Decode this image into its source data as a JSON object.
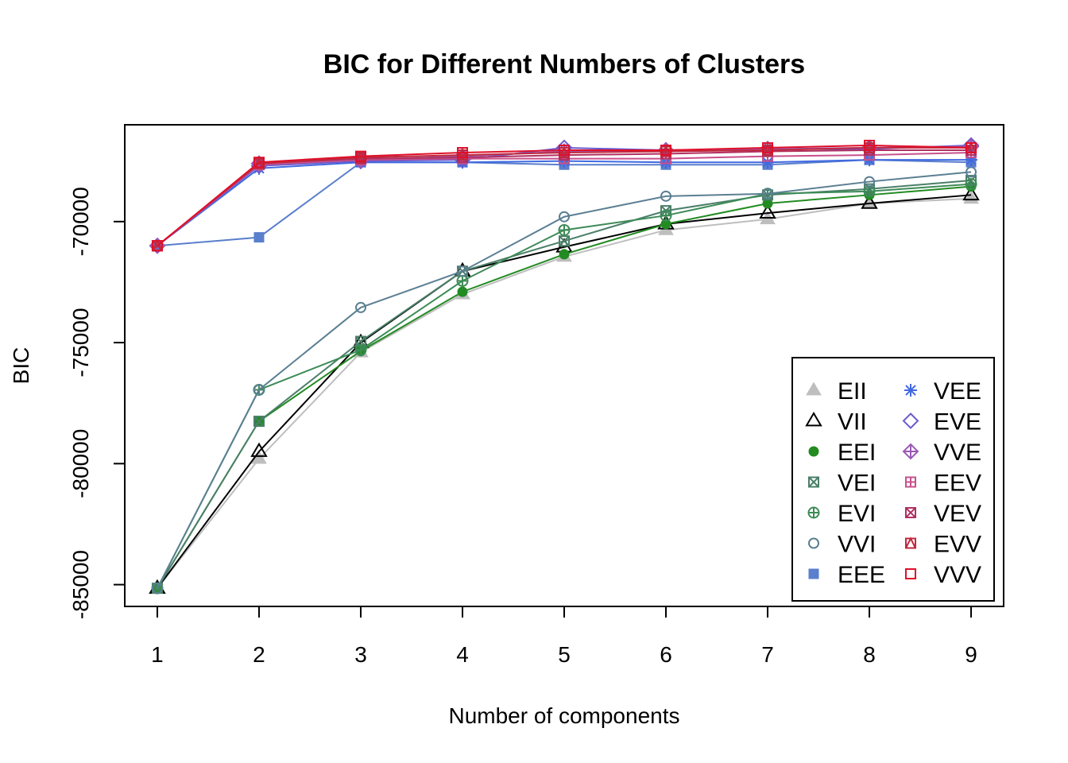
{
  "chart_data": {
    "type": "line",
    "title": "BIC for Different Numbers of Clusters",
    "xlabel": "Number of components",
    "ylabel": "BIC",
    "x": [
      1,
      2,
      3,
      4,
      5,
      6,
      7,
      8,
      9
    ],
    "x_ticks": [
      "1",
      "2",
      "3",
      "4",
      "5",
      "6",
      "7",
      "8",
      "9"
    ],
    "y_ticks": [
      "-85000",
      "-80000",
      "-75000",
      "-70000"
    ],
    "y_tick_values": [
      -85000,
      -80000,
      -75000,
      -70000
    ],
    "xlim": [
      0.68,
      9.32
    ],
    "ylim": [
      -85900,
      -66000
    ],
    "grid": false,
    "legend_position": "bottom-right",
    "series": [
      {
        "name": "EII",
        "symbol": "triangle-filled",
        "color": "#BEBEBE",
        "values": [
          -85150,
          -79800,
          -75400,
          -73000,
          -71450,
          -70350,
          -69900,
          -69250,
          -69050
        ]
      },
      {
        "name": "VII",
        "symbol": "triangle-open",
        "color": "#000000",
        "values": [
          -85150,
          -79500,
          -75000,
          -72050,
          -71050,
          -70100,
          -69650,
          -69250,
          -68900
        ]
      },
      {
        "name": "EEI",
        "symbol": "circle-filled",
        "color": "#228B22",
        "values": [
          -85150,
          -78250,
          -75350,
          -72900,
          -71350,
          -70100,
          -69250,
          -68900,
          -68550
        ]
      },
      {
        "name": "VEI",
        "symbol": "square-cross",
        "color": "#4A7F68",
        "values": [
          -85150,
          -78250,
          -74950,
          -72050,
          -70800,
          -69550,
          -68900,
          -68650,
          -68300
        ]
      },
      {
        "name": "EVI",
        "symbol": "circle-plus",
        "color": "#3D8B57",
        "values": [
          -85150,
          -76950,
          -75300,
          -72450,
          -70350,
          -69750,
          -68850,
          -68750,
          -68450
        ]
      },
      {
        "name": "VVI",
        "symbol": "circle-open",
        "color": "#5B7F93",
        "values": [
          -85150,
          -76950,
          -73550,
          -72050,
          -69800,
          -68950,
          -68850,
          -68350,
          -67950
        ]
      },
      {
        "name": "EEE",
        "symbol": "square-filled",
        "color": "#5A7FCC",
        "values": [
          -71000,
          -70650,
          -67550,
          -67550,
          -67650,
          -67650,
          -67650,
          -67450,
          -67550
        ]
      },
      {
        "name": "VEE",
        "symbol": "asterisk",
        "color": "#4169E1",
        "values": [
          -71000,
          -67800,
          -67550,
          -67550,
          -67500,
          -67550,
          -67550,
          -67450,
          -67450
        ]
      },
      {
        "name": "EVE",
        "symbol": "diamond-open",
        "color": "#6A5ACD",
        "values": [
          -71000,
          -67700,
          -67500,
          -67450,
          -66950,
          -67050,
          -67000,
          -67000,
          -66850
        ]
      },
      {
        "name": "VVE",
        "symbol": "diamond-plus",
        "color": "#9B59B6",
        "values": [
          -71000,
          -67600,
          -67450,
          -67300,
          -67100,
          -67050,
          -67000,
          -66950,
          -66900
        ]
      },
      {
        "name": "EEV",
        "symbol": "square-plus",
        "color": "#C8508C",
        "values": [
          -71000,
          -67650,
          -67450,
          -67400,
          -67400,
          -67400,
          -67300,
          -67250,
          -67150
        ]
      },
      {
        "name": "VEV",
        "symbol": "square-x",
        "color": "#B03060",
        "values": [
          -71000,
          -67600,
          -67400,
          -67350,
          -67250,
          -67200,
          -67100,
          -67050,
          -67050
        ]
      },
      {
        "name": "EVV",
        "symbol": "square-triangle",
        "color": "#C0283C",
        "values": [
          -71000,
          -67600,
          -67350,
          -67250,
          -67150,
          -67100,
          -67050,
          -66950,
          -66950
        ]
      },
      {
        "name": "VVV",
        "symbol": "square-open",
        "color": "#E0102A",
        "values": [
          -71000,
          -67550,
          -67300,
          -67150,
          -67050,
          -67050,
          -66950,
          -66850,
          -66950
        ]
      }
    ]
  }
}
